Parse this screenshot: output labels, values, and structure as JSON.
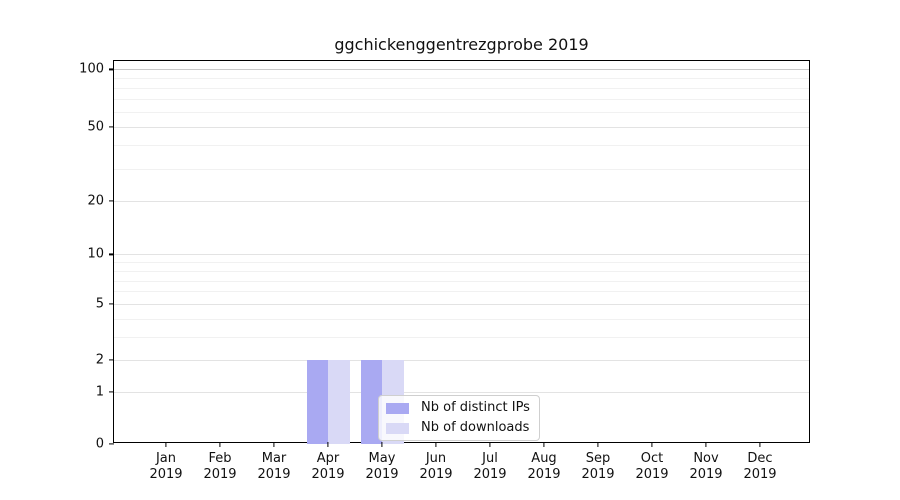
{
  "title": "ggchickenggentrezgprobe 2019",
  "chart_data": {
    "type": "bar",
    "categories": [
      "Jan",
      "Feb",
      "Mar",
      "Apr",
      "May",
      "Jun",
      "Jul",
      "Aug",
      "Sep",
      "Oct",
      "Nov",
      "Dec"
    ],
    "year": "2019",
    "series": [
      {
        "name": "Nb of distinct IPs",
        "color": "#a9a9f2",
        "values": [
          0,
          0,
          0,
          2,
          2,
          0,
          0,
          0,
          0,
          0,
          0,
          0
        ]
      },
      {
        "name": "Nb of downloads",
        "color": "#d9d9f6",
        "values": [
          0,
          0,
          0,
          2,
          2,
          0,
          0,
          0,
          0,
          0,
          0,
          0
        ]
      }
    ],
    "title": "ggchickenggentrezgprobe 2019",
    "xlabel": "",
    "ylabel": "",
    "yscale": "log-like (log1p)",
    "ylim": [
      0,
      110
    ],
    "y_major_ticks": [
      0,
      1,
      2,
      5,
      10,
      20,
      50,
      100
    ],
    "y_minor_ticks": [
      3,
      4,
      6,
      7,
      8,
      9,
      30,
      40,
      60,
      70,
      80,
      90
    ],
    "grid": true,
    "legend_position": "inside lower center",
    "colors": {
      "grid_major": "#e3e3e3",
      "grid_minor": "#f1f1f1",
      "grid_top": "#c8c8c8",
      "spine": "#000000",
      "background": "#ffffff"
    }
  }
}
